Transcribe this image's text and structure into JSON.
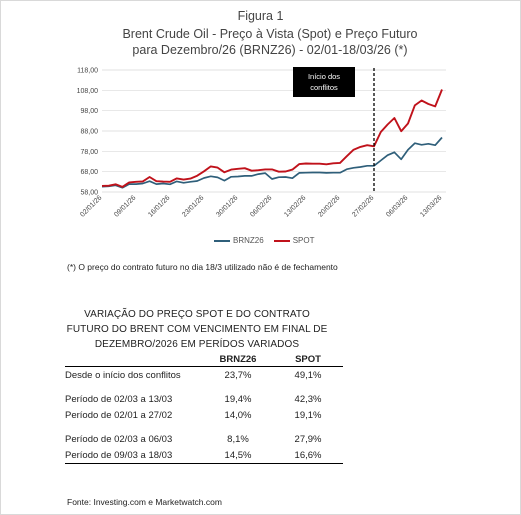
{
  "figure_label": "Figura 1",
  "title_lines": [
    "Brent Crude Oil - Preço à Vista (Spot) e Preço Futuro",
    "para Dezembro/26 (BRNZ26) - 02/01-18/03/26  (*)"
  ],
  "chart_data": {
    "type": "line",
    "x_tick_labels": [
      "02/01/26",
      "09/01/26",
      "16/01/26",
      "23/01/26",
      "30/01/26",
      "06/02/26",
      "13/02/26",
      "20/02/26",
      "27/02/26",
      "06/03/26",
      "13/03/26"
    ],
    "y_ticks": [
      "58,00",
      "68,00",
      "78,00",
      "88,00",
      "98,00",
      "108,00",
      "118,00"
    ],
    "ylim": [
      58,
      118
    ],
    "annotation": {
      "text_lines": [
        "Início dos",
        "conflitos"
      ],
      "at_index": 40
    },
    "series": [
      {
        "name": "BRNZ26",
        "color": "#2f5f7a",
        "values": [
          60.6,
          60.8,
          61.3,
          60.1,
          61.9,
          61.9,
          62.2,
          63.3,
          61.9,
          62.2,
          61.8,
          63.2,
          62.5,
          63.0,
          63.4,
          64.9,
          65.7,
          65.2,
          63.6,
          65.5,
          65.6,
          65.9,
          65.9,
          66.8,
          67.3,
          64.4,
          65.3,
          65.4,
          64.8,
          67.4,
          67.5,
          67.6,
          67.6,
          67.4,
          67.5,
          67.5,
          69.2,
          69.9,
          70.3,
          70.9,
          70.9,
          73.5,
          76.1,
          77.5,
          74.1,
          78.8,
          82.0,
          81.2,
          81.7,
          81.0,
          84.8
        ]
      },
      {
        "name": "SPOT",
        "color": "#c0121b",
        "values": [
          61.0,
          61.1,
          61.8,
          60.5,
          62.7,
          63.0,
          63.2,
          65.4,
          63.3,
          63.1,
          63.0,
          64.7,
          64.1,
          64.6,
          66.0,
          68.2,
          70.6,
          70.0,
          67.7,
          69.0,
          69.4,
          69.7,
          68.5,
          68.7,
          69.1,
          69.1,
          68.0,
          68.1,
          69.0,
          71.7,
          72.0,
          71.9,
          71.9,
          71.6,
          72.1,
          72.3,
          75.6,
          78.8,
          80.2,
          81.0,
          80.5,
          87.5,
          91.2,
          94.4,
          87.9,
          91.7,
          100.6,
          103.0,
          101.3,
          100.1,
          108.4
        ]
      }
    ]
  },
  "note": "(*) O preço do contrato futuro no dia 18/3 utilizado não é de fechamento",
  "table": {
    "title_lines": [
      "VARIAÇÃO DO PREÇO SPOT E DO CONTRATO",
      "FUTURO DO BRENT COM VENCIMENTO EM FINAL DE",
      "DEZEMBRO/2026 EM PERÍDOS VARIADOS"
    ],
    "col_brnz": "BRNZ26",
    "col_spot": "SPOT",
    "rows": [
      {
        "label": "Desde o início dos conflitos",
        "brnz": "23,7%",
        "spot": "49,1%"
      },
      {
        "label": "Período de 02/03 a 13/03",
        "brnz": "19,4%",
        "spot": "42,3%"
      },
      {
        "label": "Período de 02/01 a 27/02",
        "brnz": "14,0%",
        "spot": "19,1%"
      },
      {
        "label": "Período de 02/03 a 06/03",
        "brnz": "8,1%",
        "spot": "27,9%"
      },
      {
        "label": "Período de 09/03 a 18/03",
        "brnz": "14,5%",
        "spot": "16,6%"
      }
    ]
  },
  "source": "Fonte: Investing.com e Marketwatch.com"
}
